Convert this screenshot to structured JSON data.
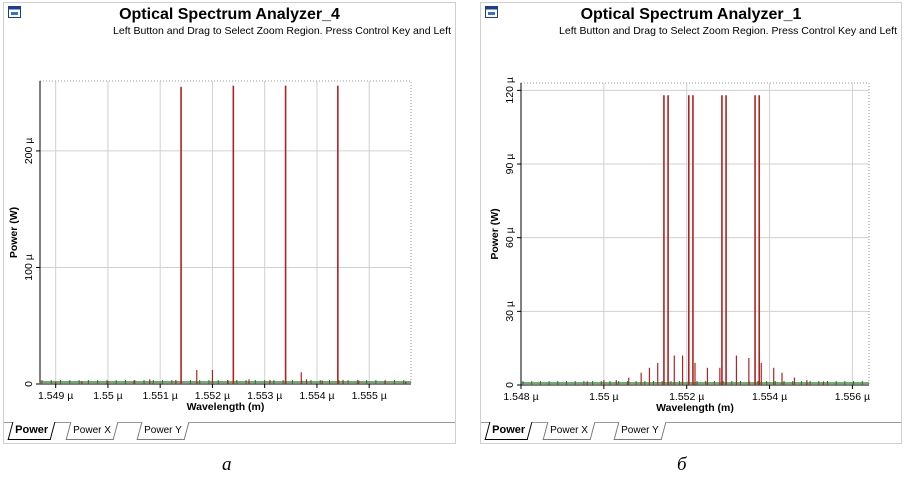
{
  "panels": [
    {
      "title": "Optical Spectrum Analyzer_4",
      "hint": "Left Button and Drag to Select Zoom Region. Press Control Key and Left",
      "tabs": [
        "Power",
        "Power X",
        "Power Y"
      ],
      "caption": "a"
    },
    {
      "title": "Optical Spectrum Analyzer_1",
      "hint": "Left Button and Drag to Select Zoom Region. Press Control Key and Left",
      "tabs": [
        "Power",
        "Power X",
        "Power Y"
      ],
      "caption": "б"
    }
  ],
  "colors": {
    "signal": "#b22222",
    "noise": "#1f7a1f",
    "grid": "#d0d0d0"
  },
  "icons": [
    "window-icon"
  ],
  "chart_data": [
    {
      "type": "bar",
      "title": "Optical Spectrum Analyzer_4",
      "xlabel": "Wavelength (m)",
      "ylabel": "Power (W)",
      "xlim": [
        1.5487,
        1.5558
      ],
      "ylim": [
        0,
        260
      ],
      "x_ticks": [
        1.549,
        1.55,
        1.551,
        1.552,
        1.553,
        1.554,
        1.555
      ],
      "x_tick_labels": [
        "1.549 µ",
        "1.55 µ",
        "1.551 µ",
        "1.552 µ",
        "1.553 µ",
        "1.554 µ",
        "1.555 µ"
      ],
      "y_ticks": [
        0,
        100,
        200
      ],
      "y_tick_labels": [
        "0",
        "100 µ",
        "200 µ"
      ],
      "units": "µW",
      "grid": true,
      "series": [
        {
          "x": [
            1.5487,
            1.549,
            1.5495,
            1.55,
            1.5505,
            1.5508,
            1.5513,
            1.5517,
            1.552,
            1.5523,
            1.5527,
            1.5531,
            1.5534,
            1.5537,
            1.5538,
            1.5541,
            1.5545,
            1.5548,
            1.5553,
            1.5557
          ],
          "values": [
            2,
            2,
            2.5,
            2.5,
            3,
            4,
            3.5,
            12,
            12,
            3,
            4,
            3.5,
            6,
            10,
            4,
            3,
            3.5,
            3,
            2.5,
            2
          ]
        },
        {
          "x": [
            1.5514,
            1.5524,
            1.5534,
            1.5544
          ],
          "values": [
            255,
            256,
            256,
            256
          ]
        }
      ]
    },
    {
      "type": "bar",
      "title": "Optical Spectrum Analyzer_1",
      "xlabel": "Wavelength (m)",
      "ylabel": "Power (W)",
      "xlim": [
        1.548,
        1.5564
      ],
      "ylim": [
        0,
        123
      ],
      "x_ticks": [
        1.548,
        1.55,
        1.552,
        1.554,
        1.556
      ],
      "x_tick_labels": [
        "1.548 µ",
        "1.55 µ",
        "1.552 µ",
        "1.554 µ",
        "1.556 µ"
      ],
      "y_ticks": [
        0,
        30,
        60,
        90,
        120
      ],
      "y_tick_labels": [
        "0",
        "30 µ",
        "60 µ",
        "90 µ",
        "120 µ"
      ],
      "units": "µW",
      "grid": true,
      "series": [
        {
          "x": [
            1.5496,
            1.55,
            1.5503,
            1.5506,
            1.5509,
            1.5511,
            1.5513,
            1.5517,
            1.5519,
            1.5522,
            1.5525,
            1.5528,
            1.5532,
            1.5535,
            1.5538,
            1.5541,
            1.5543,
            1.5546,
            1.5549,
            1.5553
          ],
          "values": [
            1.5,
            2,
            2,
            3,
            5,
            7,
            9,
            12,
            12,
            9,
            7,
            7,
            12,
            11,
            9,
            7,
            5,
            3,
            2,
            1.5
          ]
        },
        {
          "x": [
            1.55145,
            1.55155,
            1.55205,
            1.55215,
            1.55285,
            1.55295,
            1.55365,
            1.55375
          ],
          "values": [
            118,
            118,
            118,
            118,
            118,
            118,
            118,
            118
          ]
        }
      ]
    }
  ]
}
